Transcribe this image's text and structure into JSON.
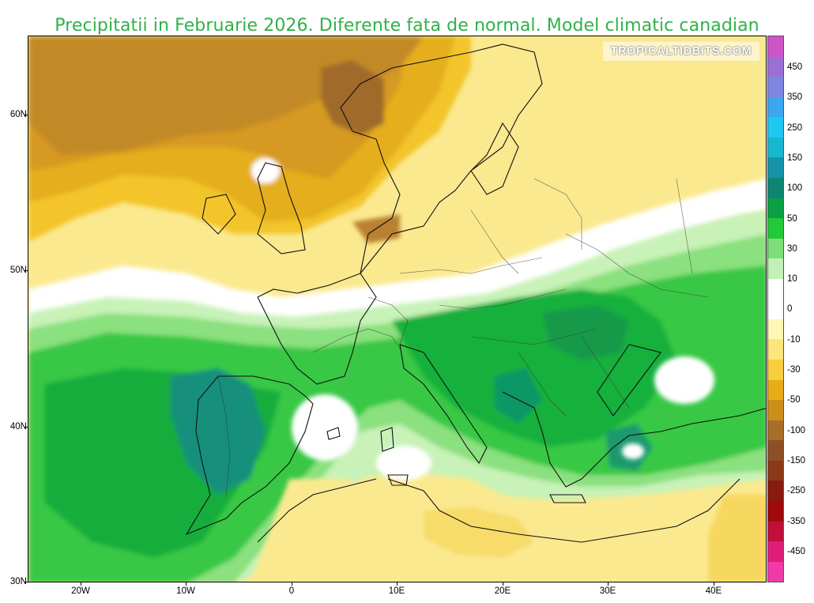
{
  "title": "Precipitatii in Februarie 2026. Diferente fata de normal. Model climatic canadian",
  "watermark": "TROPICALTIDBITS.COM",
  "latitude_labels": [
    "60N",
    "50N",
    "40N",
    "30N"
  ],
  "longitude_labels": [
    "20W",
    "10W",
    "0",
    "10E",
    "20E",
    "30E",
    "40E"
  ],
  "colorbar": {
    "labels": [
      "450",
      "350",
      "250",
      "150",
      "100",
      "50",
      "30",
      "10",
      "0",
      "-10",
      "-30",
      "-50",
      "-100",
      "-150",
      "-250",
      "-350",
      "-450"
    ],
    "colors": [
      "#cc55c8",
      "#9b6fd3",
      "#7d86e0",
      "#3aa7f0",
      "#1fc8f0",
      "#18b6d0",
      "#1593a8",
      "#0e8573",
      "#09a046",
      "#22c93a",
      "#7ddf78",
      "#c2f0b6",
      "#ffffff",
      "#ffffff",
      "#fff6b4",
      "#fde57d",
      "#f7cf3d",
      "#e7ad18",
      "#cc8f1a",
      "#a96d2a",
      "#8e4f28",
      "#8a3a18",
      "#8a1a10",
      "#a00a0a",
      "#c0103a",
      "#de1d78",
      "#f03aa8"
    ]
  }
}
